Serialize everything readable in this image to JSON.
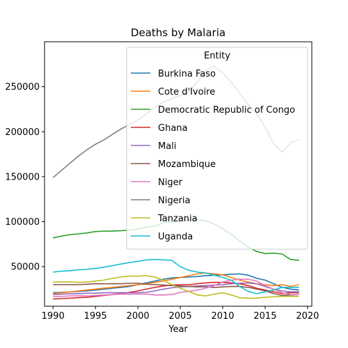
{
  "chart_data": {
    "type": "line",
    "title": "Deaths by Malaria",
    "xlabel": "Year",
    "ylabel": "",
    "xlim": [
      1989,
      2020.5
    ],
    "ylim": [
      6000,
      300000
    ],
    "xticks": [
      1990,
      1995,
      2000,
      2005,
      2010,
      2015,
      2020
    ],
    "yticks": [
      50000,
      100000,
      150000,
      200000,
      250000
    ],
    "legend": {
      "title": "Entity",
      "placement": "top-right"
    },
    "x": [
      1990,
      1991,
      1992,
      1993,
      1994,
      1995,
      1996,
      1997,
      1998,
      1999,
      2000,
      2001,
      2002,
      2003,
      2004,
      2005,
      2006,
      2007,
      2008,
      2009,
      2010,
      2011,
      2012,
      2013,
      2014,
      2015,
      2016,
      2017,
      2018,
      2019
    ],
    "series": [
      {
        "name": "Burkina Faso",
        "color": "#1f77b4",
        "values": [
          21000,
          21500,
          22000,
          22500,
          23000,
          24000,
          25000,
          26000,
          27000,
          28000,
          30000,
          32000,
          34000,
          36000,
          37500,
          38000,
          38500,
          39000,
          40000,
          40500,
          41000,
          41500,
          42000,
          40500,
          37000,
          35000,
          31000,
          27000,
          25000,
          24000
        ]
      },
      {
        "name": "Cote d'Ivoire",
        "color": "#ff7f0e",
        "values": [
          20000,
          21000,
          22000,
          23000,
          24000,
          25000,
          26000,
          27000,
          28000,
          29000,
          30000,
          31000,
          32500,
          34000,
          36000,
          38000,
          40000,
          42000,
          43000,
          42000,
          41000,
          38000,
          35000,
          33000,
          31000,
          30000,
          29000,
          30000,
          28000,
          30000
        ]
      },
      {
        "name": "Democratic Republic of Congo",
        "color": "#2ca02c",
        "values": [
          82000,
          84000,
          85500,
          86500,
          87500,
          89000,
          89500,
          89500,
          90000,
          90500,
          92000,
          94000,
          95000,
          98500,
          100000,
          101000,
          102000,
          102500,
          101000,
          97500,
          92000,
          86000,
          78500,
          71500,
          67000,
          64500,
          65000,
          64000,
          58000,
          57000
        ]
      },
      {
        "name": "Ghana",
        "color": "#d62728",
        "values": [
          14000,
          14500,
          15000,
          15500,
          16000,
          17000,
          18000,
          19000,
          20000,
          21500,
          23000,
          25000,
          27000,
          28500,
          29500,
          30000,
          30000,
          31000,
          32000,
          32500,
          32500,
          32000,
          31000,
          29000,
          26000,
          24000,
          22000,
          20000,
          21000,
          21000
        ]
      },
      {
        "name": "Mali",
        "color": "#9467bd",
        "values": [
          19000,
          19500,
          20000,
          20000,
          20500,
          20500,
          21000,
          21000,
          21000,
          21000,
          21000,
          21500,
          23000,
          25000,
          26500,
          27500,
          28000,
          28500,
          29000,
          29500,
          30000,
          31000,
          31500,
          32000,
          31000,
          28000,
          25000,
          23000,
          22000,
          22000
        ]
      },
      {
        "name": "Mozambique",
        "color": "#8c564b",
        "values": [
          30000,
          30000,
          30000,
          30000,
          30500,
          31000,
          31000,
          31000,
          31000,
          31500,
          31500,
          30500,
          30000,
          29500,
          29000,
          28500,
          28000,
          27500,
          27500,
          27000,
          27500,
          28000,
          28000,
          27000,
          25000,
          23000,
          20000,
          18000,
          18500,
          19000
        ]
      },
      {
        "name": "Niger",
        "color": "#e377c2",
        "values": [
          17000,
          17000,
          17500,
          17500,
          17500,
          18000,
          18500,
          19000,
          19500,
          19500,
          19500,
          19500,
          18500,
          18500,
          19000,
          21500,
          22500,
          24000,
          26000,
          29000,
          33000,
          35000,
          36000,
          36000,
          34000,
          29000,
          25000,
          21000,
          19000,
          19000
        ]
      },
      {
        "name": "Nigeria",
        "color": "#7f7f7f",
        "values": [
          149000,
          157000,
          165000,
          173000,
          180000,
          186000,
          191000,
          197000,
          203000,
          208000,
          213000,
          220000,
          227000,
          233000,
          237000,
          240000,
          245000,
          255000,
          268000,
          273000,
          265000,
          255000,
          243000,
          230000,
          220000,
          205000,
          187000,
          177000,
          188000,
          191000
        ]
      },
      {
        "name": "Tanzania",
        "color": "#bcbd22",
        "values": [
          33000,
          33000,
          33000,
          32500,
          33000,
          34000,
          35000,
          37000,
          38500,
          39500,
          39500,
          40000,
          38500,
          35000,
          30000,
          26000,
          22500,
          18500,
          17500,
          19500,
          21000,
          18500,
          15500,
          15000,
          15000,
          16000,
          16500,
          17000,
          17000,
          17000
        ]
      },
      {
        "name": "Uganda",
        "color": "#17becf",
        "values": [
          44000,
          45000,
          45500,
          46500,
          47000,
          48000,
          49500,
          51000,
          53000,
          54500,
          56000,
          57500,
          58000,
          57500,
          57000,
          50000,
          46000,
          44000,
          43000,
          40500,
          38000,
          35000,
          28000,
          22500,
          20000,
          22000,
          24000,
          27000,
          27000,
          27000
        ]
      }
    ]
  }
}
